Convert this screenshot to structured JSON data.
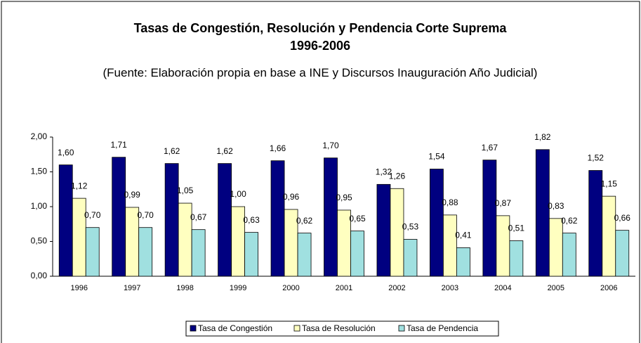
{
  "chart_data": {
    "type": "bar",
    "title": "Tasas de Congestión, Resolución y Pendencia Corte Suprema\n1996-2006",
    "subtitle": "(Fuente: Elaboración propia en base a INE y Discursos Inauguración  Año Judicial)",
    "categories": [
      "1996",
      "1997",
      "1998",
      "1999",
      "2000",
      "2001",
      "2002",
      "2003",
      "2004",
      "2005",
      "2006"
    ],
    "series": [
      {
        "name": "Tasa de Congestión",
        "color": "#000080",
        "values": [
          1.6,
          1.71,
          1.62,
          1.62,
          1.66,
          1.7,
          1.32,
          1.54,
          1.67,
          1.82,
          1.52
        ],
        "value_labels": [
          "1,60",
          "1,71",
          "1,62",
          "1,62",
          "1,66",
          "1,70",
          "1,32",
          "1,54",
          "1,67",
          "1,82",
          "1,52"
        ]
      },
      {
        "name": "Tasa de Resolución",
        "color": "#FFFFC0",
        "values": [
          1.12,
          0.99,
          1.05,
          1.0,
          0.96,
          0.95,
          1.26,
          0.88,
          0.87,
          0.83,
          1.15
        ],
        "value_labels": [
          "1,12",
          "0,99",
          "1,05",
          "1,00",
          "0,96",
          "0,95",
          "1,26",
          "0,88",
          "0,87",
          "0,83",
          "1,15"
        ]
      },
      {
        "name": "Tasa de Pendencia",
        "color": "#A0E0E0",
        "values": [
          0.7,
          0.7,
          0.67,
          0.63,
          0.62,
          0.65,
          0.53,
          0.41,
          0.51,
          0.62,
          0.66
        ],
        "value_labels": [
          "0,70",
          "0,70",
          "0,67",
          "0,63",
          "0,62",
          "0,65",
          "0,53",
          "0,41",
          "0,51",
          "0,62",
          "0,66"
        ]
      }
    ],
    "ylim": [
      0,
      2
    ],
    "yticks": [
      {
        "value": 0,
        "label": "0,00"
      },
      {
        "value": 0.5,
        "label": "0,50"
      },
      {
        "value": 1,
        "label": "1,00"
      },
      {
        "value": 1.5,
        "label": "1,50"
      },
      {
        "value": 2,
        "label": "2,00"
      }
    ],
    "legend": "bottom"
  }
}
